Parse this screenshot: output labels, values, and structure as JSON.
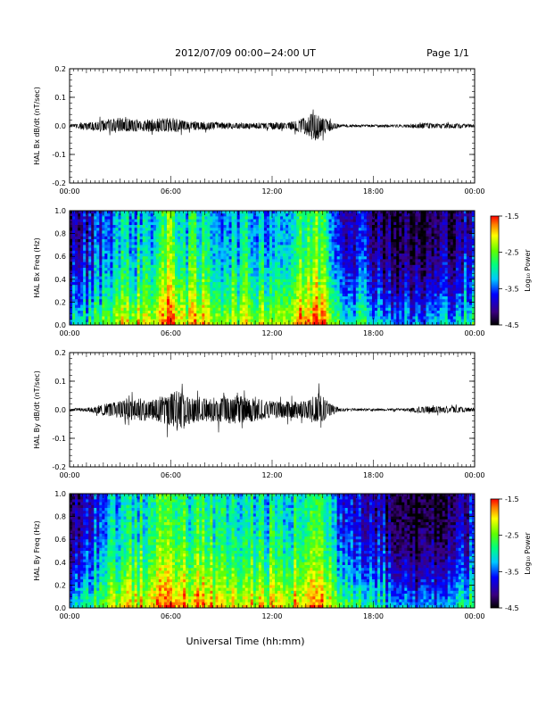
{
  "header": {
    "title": "2012/07/09   00:00−24:00 UT",
    "page": "Page 1/1"
  },
  "xaxis_label": "Universal Time (hh:mm)",
  "time_ticks": [
    "00:00",
    "06:00",
    "12:00",
    "18:00",
    "00:00"
  ],
  "colorbar": {
    "label": "Log₁₀ Power",
    "ticks": [
      "-1.5",
      "-2.5",
      "-3.5",
      "-4.5"
    ],
    "range": [
      -4.5,
      -1.5
    ],
    "colormap": "rainbow (black → blue → cyan → green → yellow → red)"
  },
  "chart_data": [
    {
      "type": "line",
      "panel": "bx-dbdt",
      "ylabel": "HAL Bx dB/dt (nT/sec)",
      "ylim": [
        -0.2,
        0.2
      ],
      "yticks": [
        "0.2",
        "0.1",
        "0.0",
        "-0.1",
        "-0.2"
      ],
      "x_range_hours": [
        0,
        24
      ],
      "color": "#000000",
      "envelope": {
        "hours": [
          0,
          1,
          2,
          3,
          4,
          5,
          6,
          7,
          8,
          9,
          10,
          11,
          12,
          13,
          14,
          14.5,
          15,
          16,
          17,
          18,
          19,
          20,
          21,
          22,
          23,
          24
        ],
        "amp_up": [
          0.005,
          0.01,
          0.02,
          0.03,
          0.02,
          0.025,
          0.03,
          0.015,
          0.015,
          0.012,
          0.01,
          0.01,
          0.012,
          0.012,
          0.03,
          0.07,
          0.03,
          0.005,
          0.004,
          0.004,
          0.004,
          0.005,
          0.01,
          0.008,
          0.008,
          0.004
        ],
        "amp_dn": [
          0.005,
          0.015,
          0.02,
          0.02,
          0.02,
          0.02,
          0.025,
          0.015,
          0.015,
          0.012,
          0.01,
          0.01,
          0.012,
          0.012,
          0.03,
          0.06,
          0.03,
          0.005,
          0.004,
          0.004,
          0.004,
          0.005,
          0.01,
          0.008,
          0.008,
          0.004
        ]
      }
    },
    {
      "type": "heatmap",
      "panel": "bx-spectrogram",
      "ylabel": "HAL Bx Freq (Hz)",
      "ylim": [
        0.0,
        1.0
      ],
      "yticks": [
        "1.0",
        "0.8",
        "0.6",
        "0.4",
        "0.2",
        "0.0"
      ],
      "x_range_hours": [
        0,
        24
      ],
      "zlim": [
        -4.5,
        -1.5
      ],
      "activity_hours": [
        0,
        1,
        2,
        3,
        4,
        5,
        6,
        7,
        8,
        9,
        10,
        11,
        12,
        13,
        14,
        15,
        16,
        17,
        18,
        19,
        20,
        21,
        22,
        23,
        24
      ],
      "activity": [
        0.25,
        0.3,
        0.45,
        0.55,
        0.55,
        0.6,
        0.75,
        0.6,
        0.6,
        0.55,
        0.55,
        0.55,
        0.55,
        0.55,
        0.7,
        0.75,
        0.4,
        0.35,
        0.3,
        0.2,
        0.15,
        0.15,
        0.2,
        0.3,
        0.3
      ]
    },
    {
      "type": "line",
      "panel": "by-dbdt",
      "ylabel": "HAL By dB/dt (nT/sec)",
      "ylim": [
        -0.2,
        0.2
      ],
      "yticks": [
        "0.2",
        "0.1",
        "0.0",
        "-0.1",
        "-0.2"
      ],
      "x_range_hours": [
        0,
        24
      ],
      "color": "#000000",
      "envelope": {
        "hours": [
          0,
          1,
          2,
          3,
          4,
          5,
          6,
          6.5,
          7,
          8,
          9,
          10,
          11,
          12,
          13,
          14,
          14.8,
          15.5,
          16,
          17,
          18,
          19,
          20,
          21,
          22,
          23,
          24
        ],
        "amp_up": [
          0.004,
          0.006,
          0.02,
          0.03,
          0.04,
          0.04,
          0.06,
          0.08,
          0.05,
          0.04,
          0.05,
          0.05,
          0.04,
          0.03,
          0.03,
          0.03,
          0.06,
          0.02,
          0.005,
          0.004,
          0.004,
          0.004,
          0.005,
          0.012,
          0.012,
          0.01,
          0.006
        ],
        "amp_dn": [
          0.004,
          0.006,
          0.02,
          0.03,
          0.04,
          0.04,
          0.06,
          0.08,
          0.05,
          0.04,
          0.05,
          0.05,
          0.04,
          0.03,
          0.03,
          0.03,
          0.05,
          0.02,
          0.005,
          0.004,
          0.004,
          0.004,
          0.005,
          0.012,
          0.012,
          0.01,
          0.006
        ]
      }
    },
    {
      "type": "heatmap",
      "panel": "by-spectrogram",
      "ylabel": "HAL By Freq (Hz)",
      "ylim": [
        0.0,
        1.0
      ],
      "yticks": [
        "1.0",
        "0.8",
        "0.6",
        "0.4",
        "0.2",
        "0.0"
      ],
      "x_range_hours": [
        0,
        24
      ],
      "zlim": [
        -4.5,
        -1.5
      ],
      "activity_hours": [
        0,
        1,
        2,
        3,
        4,
        5,
        6,
        7,
        8,
        9,
        10,
        11,
        12,
        13,
        14,
        15,
        16,
        17,
        18,
        19,
        20,
        21,
        22,
        23,
        24
      ],
      "activity": [
        0.25,
        0.3,
        0.5,
        0.6,
        0.6,
        0.65,
        0.8,
        0.65,
        0.65,
        0.6,
        0.6,
        0.6,
        0.6,
        0.55,
        0.7,
        0.7,
        0.45,
        0.4,
        0.35,
        0.22,
        0.15,
        0.15,
        0.2,
        0.3,
        0.35
      ]
    }
  ]
}
